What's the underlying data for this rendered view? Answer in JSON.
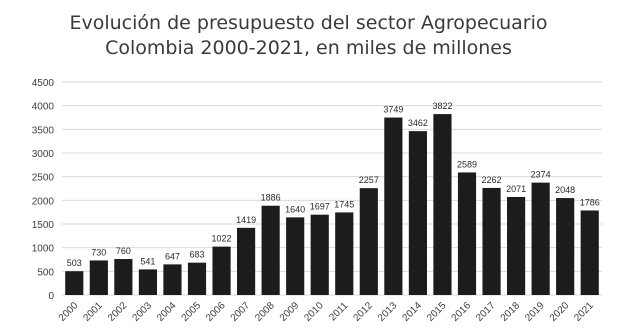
{
  "chart_data": {
    "type": "bar",
    "title_lines": [
      "Evolución de presupuesto del sector Agropecuario",
      "Colombia 2000-2021, en miles de millones"
    ],
    "categories": [
      "2000",
      "2001",
      "2002",
      "2003",
      "2004",
      "2005",
      "2006",
      "2007",
      "2008",
      "2009",
      "2010",
      "2011",
      "2012",
      "2013",
      "2014",
      "2015",
      "2016",
      "2017",
      "2018",
      "2019",
      "2020",
      "2021"
    ],
    "values": [
      503,
      730,
      760,
      541,
      647,
      683,
      1022,
      1419,
      1886,
      1640,
      1697,
      1745,
      2257,
      3749,
      3462,
      3822,
      2589,
      2262,
      2071,
      2374,
      2048,
      1786
    ],
    "data_labels": [
      "503",
      "730",
      "760",
      "541",
      "647",
      "683",
      "1022",
      "1419",
      "1886",
      "1640",
      "1697",
      "1745",
      "2257",
      "3749",
      "3462",
      "3822",
      "2589",
      "2262",
      "2071",
      "2374",
      "2048",
      "1786"
    ],
    "y_ticks": [
      0,
      500,
      1000,
      1500,
      2000,
      2500,
      3000,
      3500,
      4000,
      4500
    ],
    "ylim": [
      0,
      4500
    ],
    "grid": true,
    "legend": "none",
    "colors": {
      "bar": "#1c1c1c",
      "grid": "#d9d9d9",
      "text": "#404040"
    }
  }
}
